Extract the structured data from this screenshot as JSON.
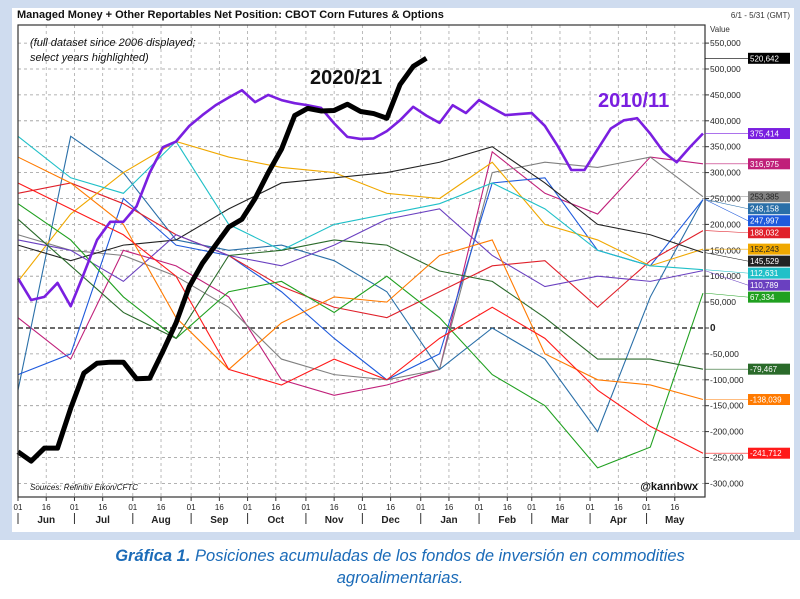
{
  "chart_data": {
    "type": "line",
    "title": "Managed Money + Other Reportables Net Position: CBOT Corn Futures & Options",
    "date_range": "6/1 - 5/31 (GMT)",
    "ylabel": "Value",
    "note": "(full dataset since 2006 displayed; select years highlighted)",
    "note_lines": [
      "(full dataset since 2006 displayed;",
      "select years highlighted)"
    ],
    "source": "Sources: Refinitiv Eikon/CFTC",
    "credit": "@kannbwx",
    "ylim": [
      -300000,
      550000
    ],
    "yticks": [
      550000,
      500000,
      450000,
      400000,
      350000,
      300000,
      250000,
      200000,
      150000,
      100000,
      50000,
      0,
      -50000,
      -100000,
      -150000,
      -200000,
      -250000,
      -300000
    ],
    "ytick_labels": [
      "550,000",
      "500,000",
      "450,000",
      "400,000",
      "350,000",
      "300,000",
      "250,000",
      "200,000",
      "150,000",
      "100,000",
      "50,000",
      "0",
      "-50,000",
      "-100,000",
      "-150,000",
      "-200,000",
      "-250,000",
      "-300,000"
    ],
    "x_months": [
      "Jun",
      "Jul",
      "Aug",
      "Sep",
      "Oct",
      "Nov",
      "Dec",
      "Jan",
      "Feb",
      "Mar",
      "Apr",
      "May"
    ],
    "x_day_ticks": [
      "01",
      "16"
    ],
    "grid": true,
    "weekly_dates": [
      "06-01",
      "06-08",
      "06-15",
      "06-22",
      "06-29",
      "07-06",
      "07-13",
      "07-20",
      "07-27",
      "08-03",
      "08-10",
      "08-17",
      "08-24",
      "08-31",
      "09-07",
      "09-14",
      "09-21",
      "09-28",
      "10-05",
      "10-12",
      "10-19",
      "10-26",
      "11-02",
      "11-09",
      "11-16",
      "11-23",
      "11-30",
      "12-07",
      "12-14",
      "12-21",
      "12-28",
      "01-04",
      "01-11",
      "01-18",
      "01-25",
      "02-01",
      "02-08",
      "02-15",
      "02-22",
      "03-01",
      "03-08",
      "03-15",
      "03-22",
      "03-29",
      "04-05",
      "04-12",
      "04-19",
      "04-26",
      "05-03",
      "05-10",
      "05-17",
      "05-24",
      "05-31"
    ],
    "thin_dates": [
      "06-01",
      "06-29",
      "07-27",
      "08-24",
      "09-21",
      "10-19",
      "11-16",
      "12-14",
      "01-11",
      "02-08",
      "03-08",
      "04-05",
      "05-03",
      "05-31"
    ],
    "highlighted": [
      {
        "name": "2020/21",
        "color": "#000000",
        "end_label": "520,642",
        "label_text": "#ffffff",
        "values": [
          -239000,
          -257000,
          -232000,
          -232000,
          -155000,
          -87000,
          -68000,
          -66000,
          -66000,
          -98000,
          -97000,
          -45000,
          10000,
          80000,
          125000,
          160000,
          195000,
          210000,
          250000,
          300000,
          345000,
          410000,
          424000,
          419000,
          420000,
          432000,
          418000,
          414000,
          405000,
          470000,
          505000,
          520642
        ]
      },
      {
        "name": "2010/11",
        "color": "#7a1fe0",
        "end_label": "375,414",
        "label_text": "#ffffff",
        "values": [
          96000,
          54000,
          60000,
          87000,
          42000,
          105000,
          170000,
          205000,
          205000,
          235000,
          300000,
          349000,
          360000,
          390000,
          411000,
          430000,
          445000,
          459000,
          436000,
          450000,
          440000,
          434000,
          430000,
          425000,
          395000,
          369000,
          365000,
          366000,
          380000,
          401000,
          427000,
          410000,
          396000,
          430000,
          415000,
          440000,
          425000,
          411000,
          413000,
          415000,
          390000,
          350000,
          305000,
          305000,
          345000,
          385000,
          401000,
          405000,
          375000,
          340000,
          320000,
          349000,
          375414
        ]
      }
    ],
    "other_series": [
      {
        "color": "#c0207a",
        "end_label": "316,975",
        "label_text": "#ffffff",
        "values": [
          20000,
          -60000,
          150000,
          120000,
          60000,
          -100000,
          -130000,
          -110000,
          -80000,
          340000,
          260000,
          220000,
          330000,
          316975
        ]
      },
      {
        "color": "#808080",
        "end_label": "253,385",
        "label_text": "#222222",
        "values": [
          180000,
          150000,
          140000,
          100000,
          40000,
          -60000,
          -90000,
          -100000,
          -80000,
          300000,
          320000,
          310000,
          330000,
          253385
        ]
      },
      {
        "color": "#2a6fa8",
        "end_label": "248,158",
        "label_text": "#ffffff",
        "values": [
          -120000,
          370000,
          300000,
          170000,
          150000,
          160000,
          130000,
          70000,
          -80000,
          0,
          -60000,
          -200000,
          60000,
          248158
        ]
      },
      {
        "color": "#1e5adc",
        "end_label": "247,997",
        "label_text": "#ffffff",
        "values": [
          -90000,
          -50000,
          250000,
          160000,
          140000,
          70000,
          -20000,
          -100000,
          -50000,
          280000,
          290000,
          150000,
          120000,
          247997
        ]
      },
      {
        "color": "#e0202a",
        "end_label": "188,032",
        "label_text": "#ffffff",
        "values": [
          260000,
          280000,
          240000,
          180000,
          140000,
          80000,
          40000,
          20000,
          70000,
          120000,
          130000,
          40000,
          130000,
          188032
        ]
      },
      {
        "color": "#f0a800",
        "end_label": "152,243",
        "label_text": "#222222",
        "values": [
          90000,
          220000,
          300000,
          360000,
          330000,
          310000,
          300000,
          260000,
          250000,
          320000,
          200000,
          170000,
          120000,
          152243
        ]
      },
      {
        "color": "#222222",
        "end_label": "145,529",
        "label_text": "#ffffff",
        "values": [
          160000,
          130000,
          160000,
          170000,
          230000,
          280000,
          290000,
          300000,
          320000,
          350000,
          280000,
          200000,
          180000,
          145529
        ]
      },
      {
        "color": "#20c0c8",
        "end_label": "112,631",
        "label_text": "#ffffff",
        "values": [
          370000,
          290000,
          260000,
          360000,
          200000,
          150000,
          200000,
          220000,
          240000,
          280000,
          230000,
          150000,
          120000,
          112631
        ]
      },
      {
        "color": "#6a40c0",
        "end_label": "110,789",
        "label_text": "#ffffff",
        "values": [
          170000,
          150000,
          90000,
          180000,
          140000,
          120000,
          160000,
          210000,
          230000,
          140000,
          80000,
          100000,
          90000,
          110789
        ]
      },
      {
        "color": "#20a020",
        "end_label": "67,334",
        "label_text": "#ffffff",
        "values": [
          240000,
          170000,
          60000,
          -20000,
          70000,
          90000,
          30000,
          100000,
          20000,
          -90000,
          -150000,
          -270000,
          -230000,
          67334
        ]
      },
      {
        "color": "#2a6a2a",
        "end_label": "-79,467",
        "label_text": "#ffffff",
        "values": [
          210000,
          120000,
          30000,
          -20000,
          140000,
          150000,
          170000,
          160000,
          110000,
          90000,
          20000,
          -60000,
          -60000,
          -79467
        ]
      },
      {
        "color": "#ff7a00",
        "end_label": "-138,039",
        "label_text": "#ffffff",
        "values": [
          330000,
          280000,
          200000,
          20000,
          -80000,
          10000,
          60000,
          50000,
          140000,
          170000,
          -50000,
          -100000,
          -110000,
          -138039
        ]
      },
      {
        "color": "#ff1a1a",
        "end_label": "-241,712",
        "label_text": "#ffffff",
        "values": [
          280000,
          230000,
          180000,
          100000,
          -80000,
          -110000,
          -60000,
          -100000,
          -20000,
          40000,
          -20000,
          -120000,
          -190000,
          -241712
        ]
      }
    ]
  },
  "caption": {
    "label": "Gráfica 1.",
    "text": "Posiciones acumuladas de los fondos de inversión en commodities",
    "text2": "agroalimentarias."
  }
}
